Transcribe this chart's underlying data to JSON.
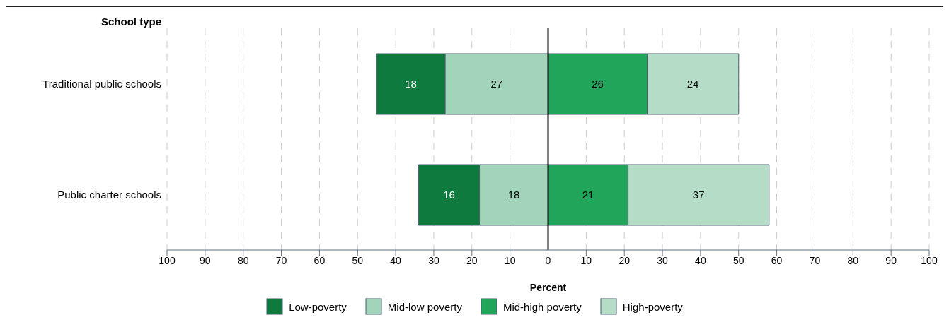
{
  "chart_data": {
    "type": "bar",
    "orientation": "horizontal",
    "ylabel": "School type",
    "xlabel": "Percent",
    "categories": [
      "Traditional public schools",
      "Public charter schools"
    ],
    "series": [
      {
        "name": "Low-poverty",
        "color": "#0e7a3e",
        "values": [
          18,
          16
        ],
        "base": [
          -45,
          -34
        ]
      },
      {
        "name": "Mid-low poverty",
        "color": "#a1d4b9",
        "values": [
          27,
          18
        ],
        "base": [
          -27,
          -18
        ]
      },
      {
        "name": "Mid-high poverty",
        "color": "#21a55a",
        "values": [
          26,
          21
        ],
        "base": [
          0,
          0
        ]
      },
      {
        "name": "High-poverty",
        "color": "#b4dcc6",
        "values": [
          24,
          37
        ],
        "base": [
          26,
          21
        ]
      }
    ],
    "data_labels": true,
    "xlim": [
      -100,
      100
    ],
    "xticks": [
      {
        "value": -100,
        "label": "100"
      },
      {
        "value": -90,
        "label": "90"
      },
      {
        "value": -80,
        "label": "80"
      },
      {
        "value": -70,
        "label": "70"
      },
      {
        "value": -60,
        "label": "60"
      },
      {
        "value": -50,
        "label": "50"
      },
      {
        "value": -40,
        "label": "40"
      },
      {
        "value": -30,
        "label": "30"
      },
      {
        "value": -20,
        "label": "20"
      },
      {
        "value": -10,
        "label": "10"
      },
      0,
      10,
      20,
      30,
      40,
      50,
      60,
      70,
      80,
      90,
      100
    ],
    "ref_lines": [
      {
        "axis": "x",
        "value": 0,
        "color": "#000000"
      }
    ],
    "grid": "x",
    "legend": "bottom"
  }
}
